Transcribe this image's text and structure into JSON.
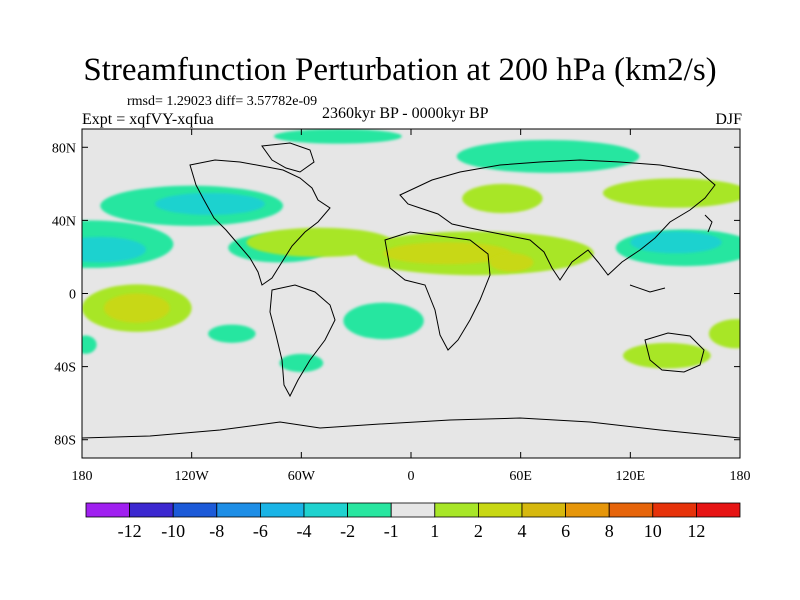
{
  "title": "Streamfunction Perturbation at 200 hPa (km2/s)",
  "stats_label": "rmsd= 1.29023  diff= 3.57782e-09",
  "expt_label": "Expt = xqfVY-xqfua",
  "period_label": "2360kyr BP - 0000kyr BP",
  "season_label": "DJF",
  "lat_ticks": [
    {
      "label": "80N",
      "value": 80
    },
    {
      "label": "40N",
      "value": 40
    },
    {
      "label": "0",
      "value": 0
    },
    {
      "label": "40S",
      "value": -40
    },
    {
      "label": "80S",
      "value": -80
    }
  ],
  "lon_ticks": [
    {
      "label": "180",
      "value": -180
    },
    {
      "label": "120W",
      "value": -120
    },
    {
      "label": "60W",
      "value": -60
    },
    {
      "label": "0",
      "value": 0
    },
    {
      "label": "60E",
      "value": 60
    },
    {
      "label": "120E",
      "value": 120
    },
    {
      "label": "180",
      "value": 180
    }
  ],
  "colorbar": {
    "colors": [
      "#a020f0",
      "#3c28d0",
      "#1c5ad8",
      "#1e8ee6",
      "#1ab4e6",
      "#1fd2cf",
      "#28e6a0",
      "#e6e6e6",
      "#a8e628",
      "#c8d814",
      "#d6b80e",
      "#e6960a",
      "#e6640a",
      "#e6320a",
      "#e61414"
    ],
    "labels": [
      "-12",
      "-10",
      "-8",
      "-6",
      "-4",
      "-2",
      "-1",
      "1",
      "2",
      "4",
      "6",
      "8",
      "10",
      "12"
    ]
  },
  "field_blobs": [
    {
      "lon": -40,
      "lat": 86,
      "rlon": 35,
      "rlat": 4,
      "color": "#28e6a0"
    },
    {
      "lon": 75,
      "lat": 75,
      "rlon": 50,
      "rlat": 9,
      "color": "#28e6a0"
    },
    {
      "lon": -120,
      "lat": 48,
      "rlon": 50,
      "rlat": 11,
      "color": "#28e6a0"
    },
    {
      "lon": -110,
      "lat": 49,
      "rlon": 30,
      "rlat": 6,
      "color": "#1fd2cf"
    },
    {
      "lon": -175,
      "lat": 27,
      "rlon": 45,
      "rlat": 13,
      "color": "#28e6a0"
    },
    {
      "lon": -170,
      "lat": 24,
      "rlon": 25,
      "rlat": 7,
      "color": "#1fd2cf"
    },
    {
      "lon": -72,
      "lat": 25,
      "rlon": 28,
      "rlat": 8,
      "color": "#28e6a0"
    },
    {
      "lon": 35,
      "lat": 22,
      "rlon": 65,
      "rlat": 12,
      "color": "#a8e628"
    },
    {
      "lon": 20,
      "lat": 22,
      "rlon": 35,
      "rlat": 6,
      "color": "#c8d814"
    },
    {
      "lon": 55,
      "lat": 17,
      "rlon": 12,
      "rlat": 5,
      "color": "#c8d814"
    },
    {
      "lon": -50,
      "lat": 28,
      "rlon": 40,
      "rlat": 8,
      "color": "#a8e628"
    },
    {
      "lon": 50,
      "lat": 52,
      "rlon": 22,
      "rlat": 8,
      "color": "#a8e628"
    },
    {
      "lon": 145,
      "lat": 55,
      "rlon": 40,
      "rlat": 8,
      "color": "#a8e628"
    },
    {
      "lon": 150,
      "lat": 25,
      "rlon": 38,
      "rlat": 10,
      "color": "#28e6a0"
    },
    {
      "lon": 145,
      "lat": 28,
      "rlon": 25,
      "rlat": 6,
      "color": "#1fd2cf"
    },
    {
      "lon": -150,
      "lat": -8,
      "rlon": 30,
      "rlat": 13,
      "color": "#a8e628"
    },
    {
      "lon": -150,
      "lat": -8,
      "rlon": 18,
      "rlat": 8,
      "color": "#c8d814"
    },
    {
      "lon": -98,
      "lat": -22,
      "rlon": 13,
      "rlat": 5,
      "color": "#28e6a0"
    },
    {
      "lon": -60,
      "lat": -38,
      "rlon": 12,
      "rlat": 5,
      "color": "#28e6a0"
    },
    {
      "lon": -15,
      "lat": -15,
      "rlon": 22,
      "rlat": 10,
      "color": "#28e6a0"
    },
    {
      "lon": 140,
      "lat": -34,
      "rlon": 24,
      "rlat": 7,
      "color": "#a8e628"
    },
    {
      "lon": 178,
      "lat": -22,
      "rlon": 15,
      "rlat": 8,
      "color": "#a8e628"
    },
    {
      "lon": -178,
      "lat": -28,
      "rlon": 6,
      "rlat": 5,
      "color": "#28e6a0"
    }
  ]
}
